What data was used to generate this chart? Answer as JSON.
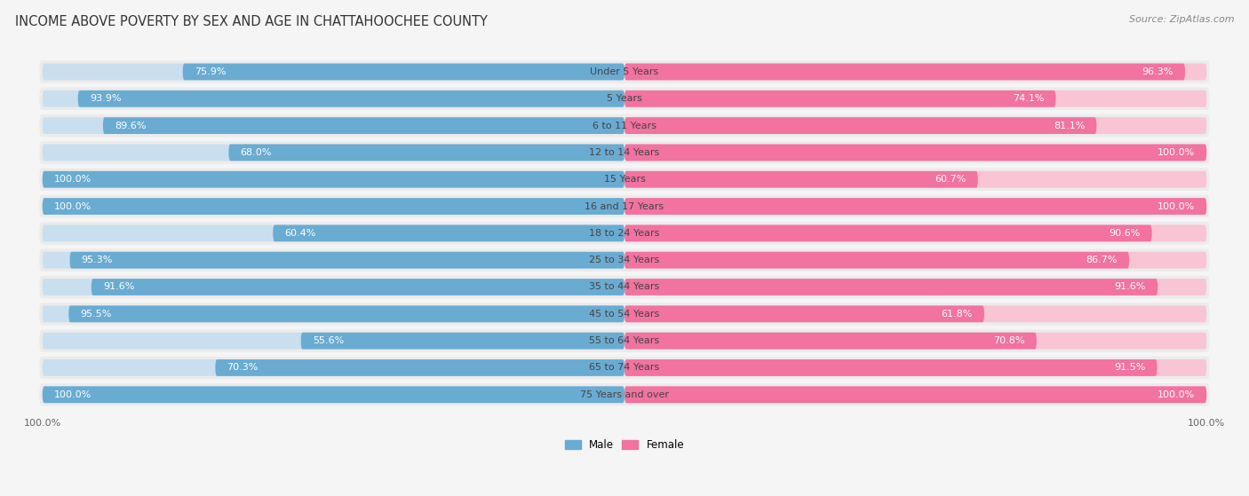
{
  "title": "INCOME ABOVE POVERTY BY SEX AND AGE IN CHATTAHOOCHEE COUNTY",
  "source": "Source: ZipAtlas.com",
  "categories": [
    "Under 5 Years",
    "5 Years",
    "6 to 11 Years",
    "12 to 14 Years",
    "15 Years",
    "16 and 17 Years",
    "18 to 24 Years",
    "25 to 34 Years",
    "35 to 44 Years",
    "45 to 54 Years",
    "55 to 64 Years",
    "65 to 74 Years",
    "75 Years and over"
  ],
  "male": [
    75.9,
    93.9,
    89.6,
    68.0,
    100.0,
    100.0,
    60.4,
    95.3,
    91.6,
    95.5,
    55.6,
    70.3,
    100.0
  ],
  "female": [
    96.3,
    74.1,
    81.1,
    100.0,
    60.7,
    100.0,
    90.6,
    86.7,
    91.6,
    61.8,
    70.8,
    91.5,
    100.0
  ],
  "male_color": "#6aabd2",
  "male_light_color": "#c9dff0",
  "female_color": "#f272a0",
  "female_light_color": "#f9c4d4",
  "row_bg_color": "#ebebeb",
  "bg_color": "#f5f5f5",
  "title_fontsize": 10.5,
  "label_fontsize": 8.0,
  "tick_fontsize": 8,
  "source_fontsize": 8
}
